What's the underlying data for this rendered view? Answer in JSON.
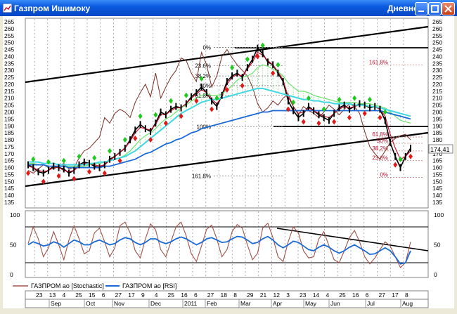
{
  "window": {
    "title": "Газпром Ишимоку",
    "mode": "Дневной",
    "colors": {
      "titlebar": "#0a5ae0",
      "close": "#c8401a"
    }
  },
  "chart_data": [
    {
      "type": "line",
      "panel": "price",
      "y_ticks": [
        "265",
        "260",
        "255",
        "250",
        "245",
        "240",
        "235",
        "230",
        "225",
        "220",
        "215",
        "210",
        "205",
        "200",
        "195",
        "190",
        "185",
        "180",
        "175",
        "170",
        "165",
        "160",
        "155",
        "150",
        "145",
        "140",
        "135"
      ],
      "ylim": [
        135,
        265
      ],
      "last_price_label": "174,41",
      "last_price": 174.41,
      "fib_upper": [
        {
          "label": "0%",
          "value": 246.5
        },
        {
          "label": "23.6%",
          "value": 233.5
        },
        {
          "label": "38.2%",
          "value": 226
        },
        {
          "label": "50%",
          "value": 219
        },
        {
          "label": "61.8%",
          "value": 212
        },
        {
          "label": "100%",
          "value": 189.5
        },
        {
          "label": "161.8%",
          "value": 154
        }
      ],
      "fib_lower": [
        {
          "label": "161.8%",
          "value": 234
        },
        {
          "label": "61.8%",
          "value": 182
        },
        {
          "label": "50%",
          "value": 177.5
        },
        {
          "label": "38.2%",
          "value": 172
        },
        {
          "label": "23.6%",
          "value": 165
        },
        {
          "label": "0%",
          "value": 153
        }
      ],
      "series": [
        {
          "role": "price",
          "color": "#000000",
          "values": [
            162,
            160,
            157,
            156,
            158,
            161,
            160,
            159,
            156,
            158,
            162,
            164,
            163,
            161,
            160,
            162,
            166,
            168,
            171,
            174,
            180,
            187,
            191,
            188,
            186,
            192,
            200,
            198,
            202,
            204,
            203,
            206,
            211,
            214,
            218,
            214,
            208,
            204,
            212,
            222,
            226,
            228,
            225,
            232,
            238,
            246,
            242,
            236,
            234,
            228,
            222,
            208,
            201,
            196,
            199,
            204,
            201,
            198,
            196,
            194,
            199,
            203,
            205,
            202,
            204,
            206,
            205,
            203,
            204,
            202,
            194,
            178,
            168,
            160,
            168,
            174
          ]
        },
        {
          "role": "tenkan",
          "color": "#c8102e",
          "values": [
            161,
            160,
            158,
            157,
            158,
            160,
            160,
            158,
            157,
            158,
            161,
            163,
            163,
            162,
            161,
            162,
            165,
            168,
            171,
            174,
            179,
            185,
            189,
            188,
            187,
            191,
            198,
            198,
            201,
            203,
            203,
            206,
            210,
            213,
            216,
            214,
            209,
            206,
            211,
            220,
            225,
            227,
            226,
            231,
            236,
            243,
            241,
            237,
            234,
            229,
            223,
            211,
            204,
            199,
            200,
            203,
            201,
            199,
            197,
            196,
            199,
            202,
            204,
            203,
            204,
            205,
            205,
            204,
            204,
            202,
            197,
            184,
            174,
            166,
            168,
            172
          ]
        },
        {
          "role": "chikou",
          "color": "#7b2d26",
          "values": [
            158,
            156,
            159,
            162,
            160,
            159,
            161,
            163,
            159,
            160,
            167,
            172,
            174,
            178,
            182,
            196,
            192,
            199,
            202,
            200,
            196,
            207,
            214,
            220,
            211,
            228,
            210,
            218,
            225,
            230,
            239,
            237,
            228,
            222,
            243,
            234,
            218,
            226,
            240,
            245,
            239,
            234,
            230,
            226,
            218,
            206,
            200,
            203,
            208,
            205,
            210,
            213,
            204,
            198,
            204,
            201,
            199,
            196,
            200,
            205,
            202,
            198,
            202,
            206,
            204,
            199,
            186,
            175,
            170,
            166,
            172,
            178,
            181,
            183,
            184,
            180
          ]
        },
        {
          "role": "cloud-a",
          "color": "#6ee36e",
          "values": [
            163,
            163,
            162,
            162,
            161,
            161,
            161,
            161,
            161,
            161,
            161,
            161,
            162,
            163,
            163,
            164,
            165,
            166,
            167,
            169,
            172,
            176,
            180,
            183,
            185,
            188,
            192,
            195,
            197,
            200,
            203,
            205,
            208,
            210,
            212,
            213,
            212,
            212,
            213,
            216,
            219,
            223,
            225,
            226,
            228,
            232,
            234,
            233,
            231,
            229,
            226,
            221,
            218,
            215,
            215,
            214,
            212,
            211,
            210,
            209,
            208,
            207,
            207,
            207,
            207,
            206,
            206,
            206,
            205,
            204,
            203,
            200,
            197,
            194,
            193,
            192
          ]
        },
        {
          "role": "cloud-b",
          "color": "#40d8e0",
          "values": [
            164,
            164,
            164,
            163,
            163,
            163,
            162,
            162,
            162,
            162,
            162,
            162,
            163,
            163,
            164,
            164,
            165,
            166,
            167,
            168,
            170,
            172,
            175,
            178,
            181,
            184,
            187,
            190,
            193,
            196,
            199,
            201,
            203,
            205,
            207,
            208,
            209,
            209,
            210,
            211,
            212,
            213,
            214,
            215,
            216,
            217,
            217,
            216,
            215,
            214,
            213,
            212,
            211,
            210,
            209,
            209,
            208,
            208,
            207,
            207,
            206,
            206,
            206,
            206,
            205,
            205,
            205,
            204,
            204,
            203,
            202,
            201,
            200,
            199,
            198,
            197
          ]
        },
        {
          "role": "ma",
          "color": "#1a6ad6",
          "values": [
            162,
            162,
            162,
            162,
            161,
            161,
            161,
            161,
            160,
            160,
            160,
            160,
            160,
            160,
            160,
            161,
            161,
            162,
            163,
            164,
            165,
            166,
            168,
            170,
            171,
            173,
            175,
            177,
            178,
            180,
            181,
            183,
            185,
            186,
            188,
            189,
            190,
            191,
            192,
            193,
            194,
            195,
            196,
            197,
            198,
            199,
            200,
            200,
            201,
            201,
            201,
            201,
            201,
            201,
            201,
            201,
            201,
            201,
            201,
            201,
            201,
            201,
            201,
            201,
            201,
            201,
            201,
            201,
            201,
            201,
            200,
            199,
            198,
            197,
            196,
            195
          ]
        }
      ]
    },
    {
      "type": "line",
      "panel": "oscillator",
      "y_ticks": [
        "100",
        "50",
        "0"
      ],
      "ylim": [
        0,
        100
      ],
      "levels": [
        80,
        20
      ],
      "x_day_labels": [
        "23",
        "13",
        "4",
        "25",
        "15",
        "6",
        "27",
        "17",
        "9",
        "4",
        "25",
        "16",
        "6",
        "27",
        "18",
        "8",
        "29",
        "21",
        "12",
        "3",
        "23",
        "14",
        "4",
        "25",
        "16",
        "6",
        "27",
        "17",
        "8"
      ],
      "x_month_labels": [
        "Sep",
        "Oct",
        "Nov",
        "Dec",
        "2011",
        "Feb",
        "Mar",
        "Apr",
        "May",
        "Jun",
        "Jul",
        "Aug"
      ],
      "series": [
        {
          "name": "ГАЗПРОМ ao [Stochastic]",
          "color": "#a0524a",
          "values": [
            52,
            80,
            60,
            30,
            45,
            72,
            50,
            25,
            58,
            82,
            60,
            35,
            40,
            70,
            78,
            55,
            30,
            45,
            82,
            88,
            70,
            40,
            28,
            60,
            85,
            75,
            42,
            30,
            55,
            80,
            88,
            65,
            35,
            22,
            48,
            76,
            83,
            60,
            30,
            42,
            72,
            84,
            78,
            50,
            25,
            36,
            78,
            86,
            62,
            30,
            22,
            55,
            80,
            70,
            40,
            28,
            30,
            60,
            72,
            48,
            25,
            20,
            40,
            62,
            74,
            55,
            30,
            18,
            28,
            42,
            55,
            48,
            30,
            12,
            20,
            55
          ]
        },
        {
          "name": "ГАЗПРОМ ao [RSI]",
          "color": "#1a6ad6",
          "values": [
            50,
            55,
            52,
            48,
            50,
            55,
            52,
            46,
            52,
            58,
            55,
            50,
            50,
            55,
            58,
            54,
            50,
            52,
            58,
            62,
            60,
            54,
            50,
            54,
            60,
            60,
            55,
            52,
            55,
            60,
            63,
            60,
            55,
            50,
            54,
            60,
            62,
            58,
            54,
            55,
            60,
            64,
            63,
            58,
            52,
            54,
            60,
            64,
            58,
            50,
            45,
            50,
            56,
            54,
            48,
            42,
            40,
            46,
            50,
            46,
            40,
            36,
            40,
            46,
            50,
            45,
            40,
            34,
            35,
            40,
            45,
            40,
            30,
            18,
            20,
            40
          ]
        }
      ]
    }
  ]
}
